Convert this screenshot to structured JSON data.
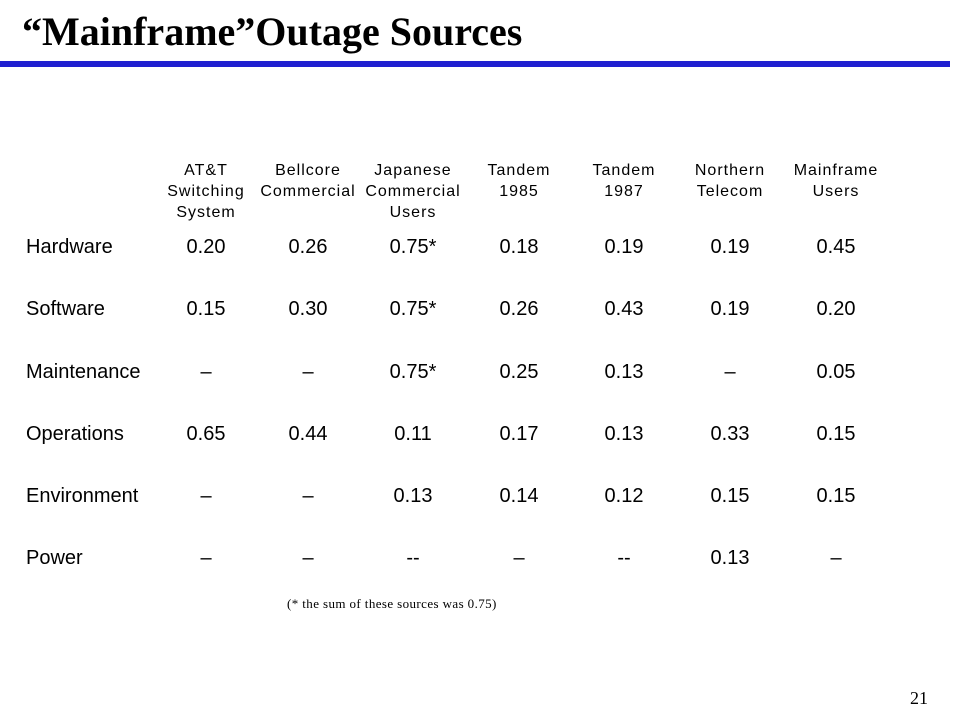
{
  "slide": {
    "title": "“Mainframe”Outage Sources",
    "footnote": "(* the sum of these sources was 0.75)",
    "page_number": "21",
    "accent_color": "#1f1fd0"
  },
  "table": {
    "columns": [
      "AT&T\nSwitching\nSystem",
      "Bellcore\nCommercial",
      "Japanese\nCommercial\nUsers",
      "Tandem\n1985",
      "Tandem\n1987",
      "Northern\nTelecom",
      "Mainframe\nUsers"
    ],
    "rows": [
      {
        "label": "Hardware",
        "values": [
          "0.20",
          "0.26",
          "0.75*",
          "0.18",
          "0.19",
          "0.19",
          "0.45"
        ]
      },
      {
        "label": "Software",
        "values": [
          "0.15",
          "0.30",
          "0.75*",
          "0.26",
          "0.43",
          "0.19",
          "0.20"
        ]
      },
      {
        "label": "Maintenance",
        "values": [
          "–",
          "–",
          "0.75*",
          "0.25",
          "0.13",
          "–",
          "0.05"
        ]
      },
      {
        "label": "Operations",
        "values": [
          "0.65",
          "0.44",
          "0.11",
          "0.17",
          "0.13",
          "0.33",
          "0.15"
        ]
      },
      {
        "label": "Environment",
        "values": [
          "–",
          "–",
          "0.13",
          "0.14",
          "0.12",
          "0.15",
          "0.15"
        ]
      },
      {
        "label": "Power",
        "values": [
          "–",
          "–",
          "--",
          "–",
          "--",
          "0.13",
          "–"
        ]
      }
    ]
  }
}
